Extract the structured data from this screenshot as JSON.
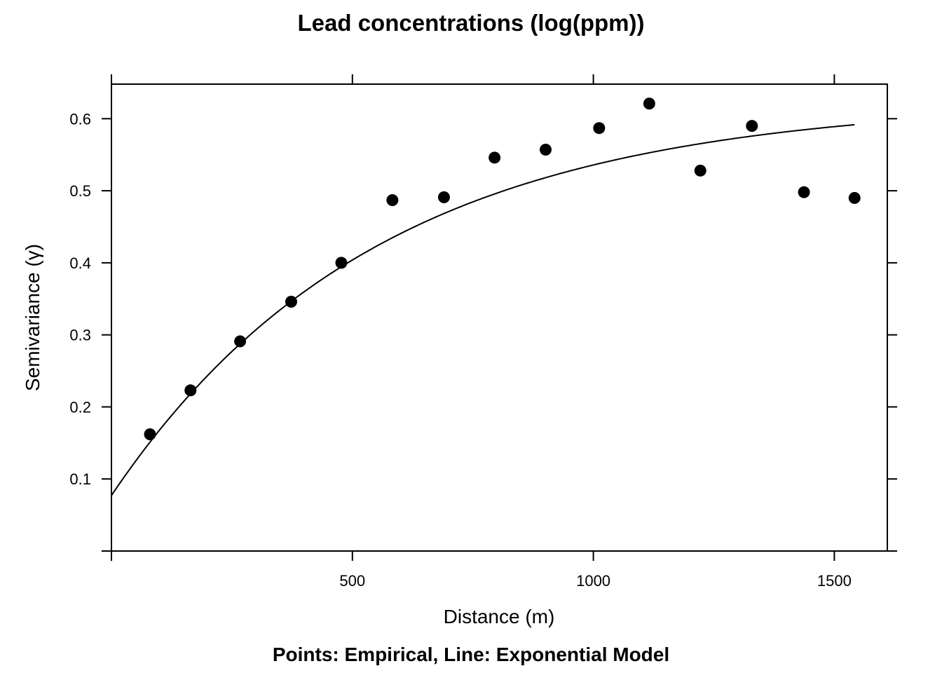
{
  "chart_data": {
    "type": "scatter",
    "title": "Lead concentrations (log(ppm))",
    "xlabel": "Distance (m)",
    "ylabel": "Semivariance (γ)",
    "subtitle": "Points: Empirical, Line: Exponential Model",
    "xlim": [
      0,
      1610
    ],
    "ylim": [
      0,
      0.648
    ],
    "x_ticks": [
      500,
      1000,
      1500
    ],
    "x_tick_labels": [
      "500",
      "1000",
      "1500"
    ],
    "y_ticks": [
      0.1,
      0.2,
      0.3,
      0.4,
      0.5,
      0.6
    ],
    "y_tick_labels": [
      "0.1",
      "0.2",
      "0.3",
      "0.4",
      "0.5",
      "0.6"
    ],
    "series": [
      {
        "name": "Empirical",
        "kind": "points",
        "x": [
          80,
          164,
          267,
          373,
          477,
          583,
          690,
          795,
          901,
          1012,
          1116,
          1222,
          1329,
          1437,
          1542
        ],
        "y": [
          0.162,
          0.223,
          0.291,
          0.346,
          0.4,
          0.487,
          0.491,
          0.546,
          0.557,
          0.587,
          0.621,
          0.528,
          0.59,
          0.498,
          0.49
        ]
      },
      {
        "name": "Exponential Model",
        "kind": "line",
        "model": {
          "nugget": 0.0771,
          "partial_sill": 0.5479,
          "range": 551,
          "x_from": 0,
          "x_to": 1542
        }
      }
    ],
    "colors": {
      "points": "#000000",
      "line": "#000000",
      "axes": "#000000"
    }
  }
}
